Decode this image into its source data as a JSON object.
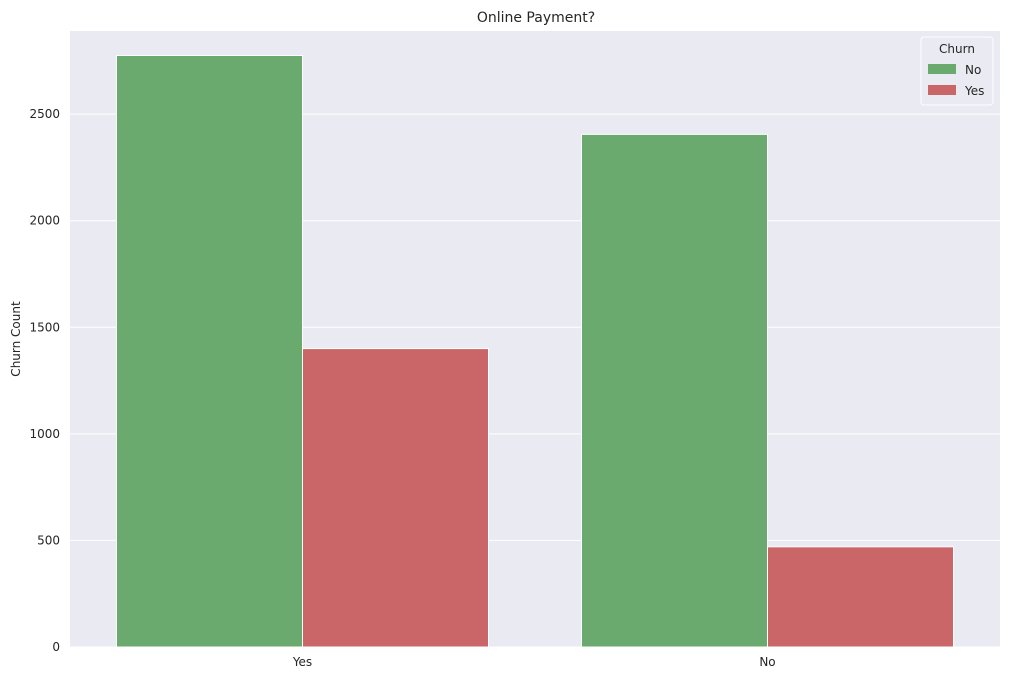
{
  "chart_data": {
    "type": "bar",
    "title": "Online Payment?",
    "xlabel": "",
    "ylabel": "Churn Count",
    "categories": [
      "Yes",
      "No"
    ],
    "series": [
      {
        "name": "No",
        "values": [
          2775,
          2405
        ]
      },
      {
        "name": "Yes",
        "values": [
          1400,
          470
        ]
      }
    ],
    "ylim": [
      0,
      2890
    ],
    "yticks": [
      0,
      500,
      1000,
      1500,
      2000,
      2500
    ],
    "grid": true,
    "legend": {
      "title": "Churn",
      "placement": "top-right"
    }
  },
  "colors": {
    "plot_background": "#eaeaf2",
    "grid": "#ffffff",
    "series": [
      "#6aaa6e",
      "#cb6668"
    ],
    "text": "#262626"
  }
}
